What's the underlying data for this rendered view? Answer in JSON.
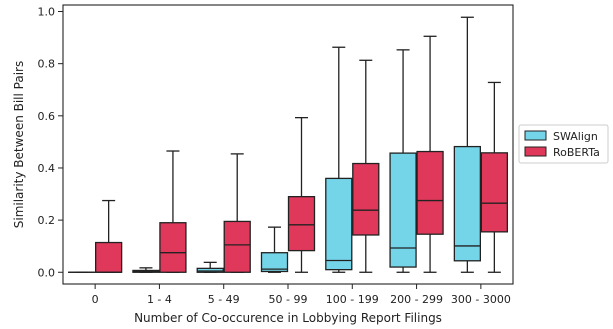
{
  "chart_data": {
    "type": "boxplot",
    "xlabel": "Number of Co-occurence in Lobbying Report Filings",
    "ylabel": "Similarity Between Bill Pairs",
    "ylim": [
      -0.045,
      1.025
    ],
    "yticks": [
      "0.0",
      "0.2",
      "0.4",
      "0.6",
      "0.8",
      "1.0"
    ],
    "categories": [
      "0",
      "1 - 4",
      "5 - 49",
      "50 - 99",
      "100 - 199",
      "200 - 299",
      "300 - 3000"
    ],
    "grid": false,
    "legend_position": "right",
    "series": [
      {
        "name": "SWAlign",
        "color": "#74d5e8",
        "boxes": [
          {
            "whisker_low": 0.0,
            "q1": 0.0,
            "median": 0.0,
            "q3": 0.0,
            "whisker_high": 0.0
          },
          {
            "whisker_low": 0.0,
            "q1": 0.0,
            "median": 0.003,
            "q3": 0.007,
            "whisker_high": 0.017
          },
          {
            "whisker_low": 0.0,
            "q1": 0.0,
            "median": 0.005,
            "q3": 0.015,
            "whisker_high": 0.038
          },
          {
            "whisker_low": 0.0,
            "q1": 0.003,
            "median": 0.012,
            "q3": 0.075,
            "whisker_high": 0.173
          },
          {
            "whisker_low": 0.0,
            "q1": 0.01,
            "median": 0.045,
            "q3": 0.36,
            "whisker_high": 0.863
          },
          {
            "whisker_low": 0.0,
            "q1": 0.02,
            "median": 0.093,
            "q3": 0.457,
            "whisker_high": 0.853
          },
          {
            "whisker_low": 0.0,
            "q1": 0.044,
            "median": 0.101,
            "q3": 0.482,
            "whisker_high": 0.978
          }
        ]
      },
      {
        "name": "RoBERTa",
        "color": "#e0385a",
        "boxes": [
          {
            "whisker_low": 0.0,
            "q1": 0.0,
            "median": 0.0,
            "q3": 0.114,
            "whisker_high": 0.275
          },
          {
            "whisker_low": 0.0,
            "q1": 0.0,
            "median": 0.075,
            "q3": 0.19,
            "whisker_high": 0.465
          },
          {
            "whisker_low": 0.0,
            "q1": 0.0,
            "median": 0.105,
            "q3": 0.195,
            "whisker_high": 0.454
          },
          {
            "whisker_low": 0.0,
            "q1": 0.083,
            "median": 0.182,
            "q3": 0.29,
            "whisker_high": 0.593
          },
          {
            "whisker_low": 0.0,
            "q1": 0.143,
            "median": 0.238,
            "q3": 0.417,
            "whisker_high": 0.813
          },
          {
            "whisker_low": 0.0,
            "q1": 0.146,
            "median": 0.275,
            "q3": 0.463,
            "whisker_high": 0.905
          },
          {
            "whisker_low": 0.0,
            "q1": 0.155,
            "median": 0.265,
            "q3": 0.458,
            "whisker_high": 0.728
          }
        ]
      }
    ]
  }
}
